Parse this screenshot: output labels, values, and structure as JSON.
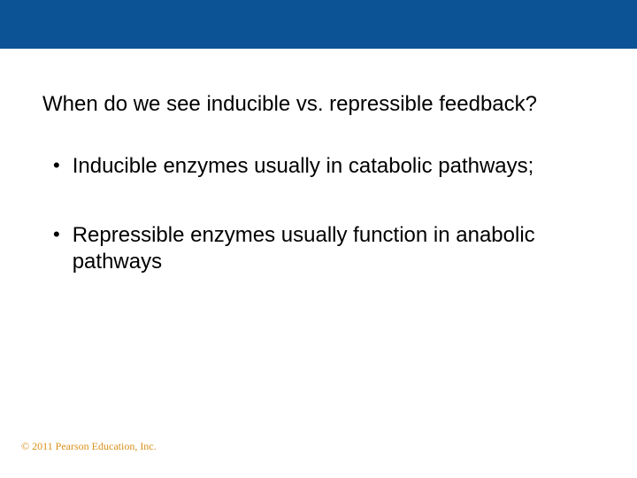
{
  "slide": {
    "top_bar_color": "#0b5394",
    "copyright_color": "#d99018",
    "title": "When do we see inducible vs. repressible feedback?",
    "title_fontsize": 24,
    "bullet_fontsize": 24,
    "bullets": [
      {
        "text": "Inducible enzymes usually in catabolic pathways;"
      },
      {
        "text": "Repressible enzymes usually function in anabolic pathways"
      }
    ],
    "copyright": "© 2011 Pearson Education, Inc."
  }
}
